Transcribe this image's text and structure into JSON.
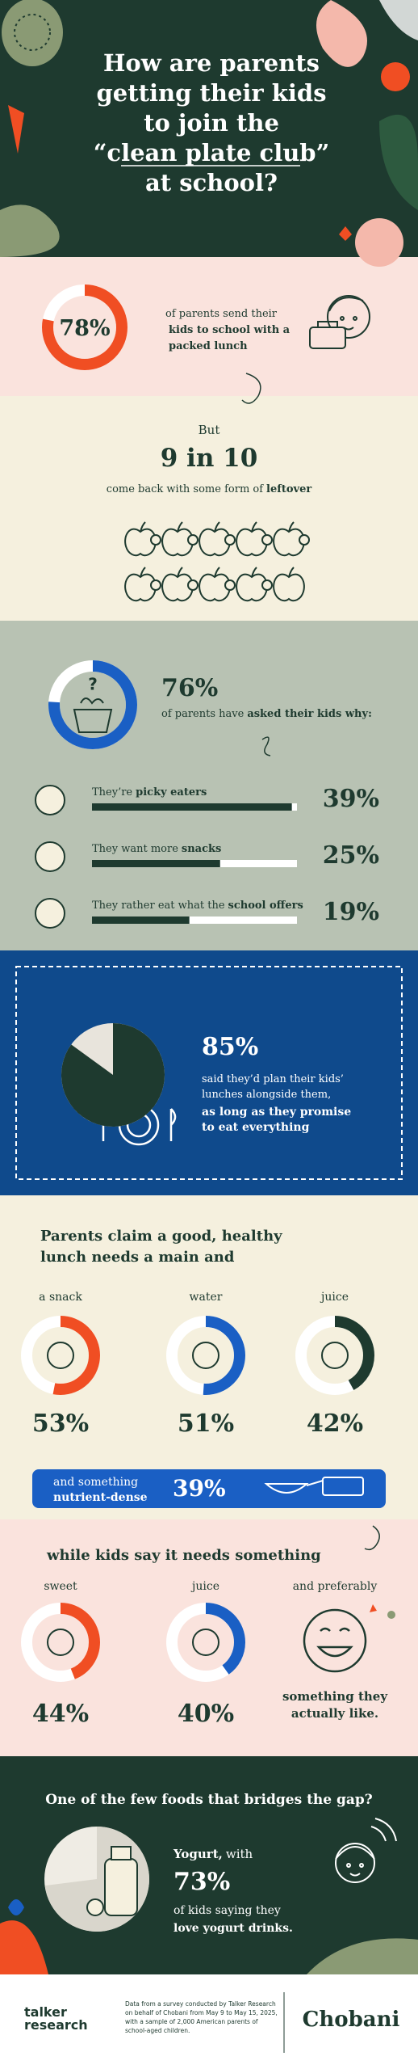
{
  "header": {
    "title_lines": [
      "How are parents",
      "getting their kids",
      "to join the",
      "“clean plate club”",
      "at school?"
    ]
  },
  "packed_lunch": {
    "value": 78,
    "label": "78%",
    "color": "#f04e23",
    "text_lines": [
      [
        "of parents send their",
        ""
      ],
      [
        "",
        "kids to school with a"
      ],
      [
        "",
        "packed lunch"
      ]
    ]
  },
  "leftover": {
    "intro": "But",
    "headline": "9 in 10",
    "text": "come back with some form of",
    "text_bold": "leftover"
  },
  "asked_why": {
    "value": 76,
    "label": "76%",
    "color": "#1a5fc4",
    "text": "of parents have",
    "text_bold": "asked their kids why:",
    "xlim": [
      0,
      40
    ],
    "reasons": [
      {
        "text": "They’re",
        "bold": "picky eaters",
        "value": 39,
        "label": "39%"
      },
      {
        "text": "They want more",
        "bold": "snacks",
        "value": 25,
        "label": "25%"
      },
      {
        "text": "They rather eat what the",
        "bold": "school offers",
        "value": 19,
        "label": "19%"
      }
    ]
  },
  "plan_lunches": {
    "value": 85,
    "label": "85%",
    "lines": [
      "said they’d plan their kids’",
      "lunches alongside them,"
    ],
    "bold_lines": [
      "as long as they promise",
      "to eat everything"
    ]
  },
  "parents_claim": {
    "heading_lines": [
      "Parents claim a good, healthy",
      "lunch needs a main and"
    ],
    "items": [
      {
        "name": "a snack",
        "value": 53,
        "label": "53%",
        "color": "#f04e23"
      },
      {
        "name": "water",
        "value": 51,
        "label": "51%",
        "color": "#1a5fc4"
      },
      {
        "name": "juice",
        "value": 42,
        "label": "42%",
        "color": "#1e3a2f"
      }
    ],
    "extra": {
      "text": "and something",
      "bold": "nutrient-dense",
      "value": 39,
      "label": "39%"
    }
  },
  "kids_say": {
    "heading": "while kids say it needs something",
    "items": [
      {
        "name": "sweet",
        "value": 44,
        "label": "44%",
        "color": "#f04e23"
      },
      {
        "name": "juice",
        "value": 40,
        "label": "40%",
        "color": "#1a5fc4"
      }
    ],
    "preferably": {
      "name": "and preferably",
      "bold_lines": [
        "something they",
        "actually like."
      ]
    }
  },
  "yogurt": {
    "heading": "One of the few foods that bridges the gap?",
    "bold": "Yogurt,",
    "text": "with",
    "value": 73,
    "label": "73%",
    "line": "of kids saying they",
    "bold_line": "love yogurt drinks."
  },
  "footer": {
    "logo_lines": [
      "talker",
      "research"
    ],
    "source_lines": [
      "Data from a survey conducted by Talker Research",
      "on behalf of Chobani from May 9 to May 15, 2025,",
      "with a sample of 2,000 American parents of",
      "school-aged children."
    ],
    "brand": "Chobani"
  }
}
